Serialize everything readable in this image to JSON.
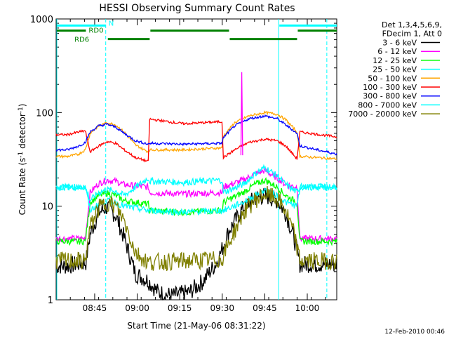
{
  "chart_data": {
    "type": "line",
    "title": "HESSI Observing Summary Count Rates",
    "xlabel": "Start Time (21-May-06 08:31:22)",
    "ylabel_main": "Count Rate (s",
    "ylabel_sup1": "-1",
    "ylabel_mid": " detector",
    "ylabel_sup2": "-1",
    "ylabel_end": ")",
    "yscale": "log",
    "ylim": [
      1,
      1000
    ],
    "xlim_minutes": [
      0,
      99
    ],
    "x_ticks": [
      {
        "label": "08:45",
        "t": 13.6
      },
      {
        "label": "09:00",
        "t": 28.6
      },
      {
        "label": "09:15",
        "t": 43.6
      },
      {
        "label": "09:30",
        "t": 58.6
      },
      {
        "label": "09:45",
        "t": 73.6
      },
      {
        "label": "10:00",
        "t": 88.6
      }
    ],
    "y_ticks": [
      {
        "label": "1",
        "v": 1
      },
      {
        "label": "10",
        "v": 10
      },
      {
        "label": "100",
        "v": 100
      },
      {
        "label": "1000",
        "v": 1000
      }
    ],
    "legend_header": [
      "Det 1,3,4,5,6,9,",
      "FDecim 1, Att 0"
    ],
    "series": [
      {
        "name": "3 - 6 keV",
        "color": "#000000",
        "values": [
          {
            "t": 0,
            "v": 2.3
          },
          {
            "t": 4,
            "v": 2.3
          },
          {
            "t": 10.5,
            "v": 2.5
          },
          {
            "t": 12,
            "v": 5
          },
          {
            "t": 15,
            "v": 8.5
          },
          {
            "t": 18,
            "v": 9.8
          },
          {
            "t": 21,
            "v": 8
          },
          {
            "t": 24,
            "v": 4.6
          },
          {
            "t": 28,
            "v": 1.9
          },
          {
            "t": 32.5,
            "v": 1.6
          },
          {
            "t": 36,
            "v": 1.2
          },
          {
            "t": 41,
            "v": 1.1
          },
          {
            "t": 47,
            "v": 1.2
          },
          {
            "t": 52,
            "v": 1.6
          },
          {
            "t": 57,
            "v": 2.6
          },
          {
            "t": 61,
            "v": 5.5
          },
          {
            "t": 66,
            "v": 9.5
          },
          {
            "t": 70,
            "v": 12
          },
          {
            "t": 73.6,
            "v": 13
          },
          {
            "t": 78,
            "v": 11.5
          },
          {
            "t": 81,
            "v": 8.5
          },
          {
            "t": 84,
            "v": 4.5
          },
          {
            "t": 86,
            "v": 2.4
          },
          {
            "t": 99,
            "v": 2.4
          }
        ]
      },
      {
        "name": "6 - 12 keV",
        "color": "#ff00ff",
        "values": [
          {
            "t": 0,
            "v": 4.5
          },
          {
            "t": 10.3,
            "v": 4.5
          },
          {
            "t": 12,
            "v": 14
          },
          {
            "t": 15,
            "v": 17.5
          },
          {
            "t": 18,
            "v": 19
          },
          {
            "t": 21,
            "v": 18.5
          },
          {
            "t": 24,
            "v": 17
          },
          {
            "t": 32.5,
            "v": 16
          },
          {
            "t": 33,
            "v": 14
          },
          {
            "t": 45,
            "v": 13.5
          },
          {
            "t": 58.5,
            "v": 14
          },
          {
            "t": 59,
            "v": 16
          },
          {
            "t": 66,
            "v": 19
          },
          {
            "t": 70,
            "v": 22
          },
          {
            "t": 73.6,
            "v": 24
          },
          {
            "t": 78,
            "v": 20
          },
          {
            "t": 81,
            "v": 17
          },
          {
            "t": 85,
            "v": 16
          },
          {
            "t": 86,
            "v": 4.5
          },
          {
            "t": 99,
            "v": 4.5
          }
        ]
      },
      {
        "name": "12 - 25 keV",
        "color": "#00ff00",
        "values": [
          {
            "t": 0,
            "v": 4.2
          },
          {
            "t": 10.3,
            "v": 4.2
          },
          {
            "t": 12,
            "v": 11
          },
          {
            "t": 15,
            "v": 13
          },
          {
            "t": 18,
            "v": 13.8
          },
          {
            "t": 21,
            "v": 13
          },
          {
            "t": 24,
            "v": 11.5
          },
          {
            "t": 32.5,
            "v": 10.5
          },
          {
            "t": 33,
            "v": 9
          },
          {
            "t": 45,
            "v": 8.6
          },
          {
            "t": 58.5,
            "v": 9
          },
          {
            "t": 59,
            "v": 11
          },
          {
            "t": 66,
            "v": 14
          },
          {
            "t": 70,
            "v": 17
          },
          {
            "t": 73.6,
            "v": 19
          },
          {
            "t": 78,
            "v": 16
          },
          {
            "t": 81,
            "v": 13
          },
          {
            "t": 85,
            "v": 11
          },
          {
            "t": 86,
            "v": 4.2
          },
          {
            "t": 99,
            "v": 4.2
          }
        ]
      },
      {
        "name": "25 - 50 keV",
        "color": "#00ffff",
        "values": [
          {
            "t": 0,
            "v": 16
          },
          {
            "t": 10.3,
            "v": 16
          },
          {
            "t": 12,
            "v": 11.5
          },
          {
            "t": 15,
            "v": 14
          },
          {
            "t": 18,
            "v": 15
          },
          {
            "t": 21,
            "v": 14.5
          },
          {
            "t": 24,
            "v": 13
          },
          {
            "t": 32.5,
            "v": 20
          },
          {
            "t": 33,
            "v": 18.5
          },
          {
            "t": 45,
            "v": 18
          },
          {
            "t": 58.5,
            "v": 19
          },
          {
            "t": 59,
            "v": 14
          },
          {
            "t": 66,
            "v": 17
          },
          {
            "t": 70,
            "v": 22
          },
          {
            "t": 73.6,
            "v": 26
          },
          {
            "t": 78,
            "v": 21
          },
          {
            "t": 81,
            "v": 17
          },
          {
            "t": 85,
            "v": 14
          },
          {
            "t": 86,
            "v": 16
          },
          {
            "t": 99,
            "v": 16
          }
        ]
      },
      {
        "name": "50 - 100 keV",
        "color": "#ffa500",
        "values": [
          {
            "t": 0,
            "v": 34
          },
          {
            "t": 4,
            "v": 34
          },
          {
            "t": 8,
            "v": 36
          },
          {
            "t": 10.3,
            "v": 40
          },
          {
            "t": 12,
            "v": 60
          },
          {
            "t": 15,
            "v": 72
          },
          {
            "t": 18,
            "v": 78
          },
          {
            "t": 21,
            "v": 74
          },
          {
            "t": 24,
            "v": 62
          },
          {
            "t": 28,
            "v": 45
          },
          {
            "t": 32.5,
            "v": 38
          },
          {
            "t": 33,
            "v": 40
          },
          {
            "t": 45,
            "v": 40
          },
          {
            "t": 58.5,
            "v": 42
          },
          {
            "t": 59,
            "v": 56
          },
          {
            "t": 63,
            "v": 78
          },
          {
            "t": 68,
            "v": 92
          },
          {
            "t": 73.6,
            "v": 100
          },
          {
            "t": 78,
            "v": 96
          },
          {
            "t": 81,
            "v": 84
          },
          {
            "t": 85,
            "v": 62
          },
          {
            "t": 86,
            "v": 34
          },
          {
            "t": 99,
            "v": 32
          }
        ]
      },
      {
        "name": "100 - 300 keV",
        "color": "#ff0000",
        "values": [
          {
            "t": 0,
            "v": 58
          },
          {
            "t": 4,
            "v": 58
          },
          {
            "t": 8,
            "v": 62
          },
          {
            "t": 10.3,
            "v": 64
          },
          {
            "t": 12,
            "v": 38
          },
          {
            "t": 15,
            "v": 44
          },
          {
            "t": 18,
            "v": 49
          },
          {
            "t": 21,
            "v": 47
          },
          {
            "t": 24,
            "v": 40
          },
          {
            "t": 28,
            "v": 33
          },
          {
            "t": 32.5,
            "v": 30
          },
          {
            "t": 33,
            "v": 85
          },
          {
            "t": 45,
            "v": 76
          },
          {
            "t": 58.5,
            "v": 80
          },
          {
            "t": 59,
            "v": 33
          },
          {
            "t": 63,
            "v": 40
          },
          {
            "t": 68,
            "v": 48
          },
          {
            "t": 73.6,
            "v": 52
          },
          {
            "t": 78,
            "v": 50
          },
          {
            "t": 81,
            "v": 44
          },
          {
            "t": 85,
            "v": 32
          },
          {
            "t": 86,
            "v": 62
          },
          {
            "t": 99,
            "v": 55
          }
        ]
      },
      {
        "name": "300 - 800 keV",
        "color": "#0000ff",
        "values": [
          {
            "t": 0,
            "v": 40
          },
          {
            "t": 4,
            "v": 40
          },
          {
            "t": 8,
            "v": 44
          },
          {
            "t": 10.3,
            "v": 48
          },
          {
            "t": 12,
            "v": 62
          },
          {
            "t": 15,
            "v": 72
          },
          {
            "t": 18,
            "v": 75
          },
          {
            "t": 21,
            "v": 70
          },
          {
            "t": 24,
            "v": 60
          },
          {
            "t": 28,
            "v": 50
          },
          {
            "t": 32.5,
            "v": 46
          },
          {
            "t": 33,
            "v": 47
          },
          {
            "t": 45,
            "v": 46
          },
          {
            "t": 58.5,
            "v": 47
          },
          {
            "t": 59,
            "v": 54
          },
          {
            "t": 63,
            "v": 72
          },
          {
            "t": 68,
            "v": 86
          },
          {
            "t": 73.6,
            "v": 92
          },
          {
            "t": 78,
            "v": 86
          },
          {
            "t": 81,
            "v": 74
          },
          {
            "t": 85,
            "v": 60
          },
          {
            "t": 86,
            "v": 44
          },
          {
            "t": 99,
            "v": 36
          }
        ]
      },
      {
        "name": "800 - 7000 keV",
        "color": "#00ffff",
        "values": [
          {
            "t": 0,
            "v": 16
          },
          {
            "t": 10.3,
            "v": 16
          },
          {
            "t": 12,
            "v": 9
          },
          {
            "t": 15,
            "v": 10.5
          },
          {
            "t": 18,
            "v": 11.5
          },
          {
            "t": 21,
            "v": 11
          },
          {
            "t": 24,
            "v": 10
          },
          {
            "t": 32.5,
            "v": 9
          },
          {
            "t": 33,
            "v": 9
          },
          {
            "t": 45,
            "v": 8.6
          },
          {
            "t": 58.5,
            "v": 9
          },
          {
            "t": 59,
            "v": 9
          },
          {
            "t": 66,
            "v": 11
          },
          {
            "t": 70,
            "v": 13
          },
          {
            "t": 73.6,
            "v": 15
          },
          {
            "t": 78,
            "v": 13
          },
          {
            "t": 81,
            "v": 11
          },
          {
            "t": 85,
            "v": 10
          },
          {
            "t": 86,
            "v": 16
          },
          {
            "t": 99,
            "v": 16
          }
        ]
      },
      {
        "name": "7000 - 20000 keV",
        "color": "#808000",
        "values": [
          {
            "t": 0,
            "v": 2.6
          },
          {
            "t": 10.3,
            "v": 2.6
          },
          {
            "t": 12,
            "v": 6
          },
          {
            "t": 15,
            "v": 9.5
          },
          {
            "t": 18,
            "v": 11
          },
          {
            "t": 21,
            "v": 10
          },
          {
            "t": 24,
            "v": 7
          },
          {
            "t": 28,
            "v": 3.2
          },
          {
            "t": 32.5,
            "v": 2.5
          },
          {
            "t": 45,
            "v": 2.6
          },
          {
            "t": 58.5,
            "v": 2.7
          },
          {
            "t": 59,
            "v": 3
          },
          {
            "t": 66,
            "v": 8.5
          },
          {
            "t": 70,
            "v": 11.5
          },
          {
            "t": 73.6,
            "v": 13.5
          },
          {
            "t": 78,
            "v": 12
          },
          {
            "t": 81,
            "v": 9
          },
          {
            "t": 84,
            "v": 5
          },
          {
            "t": 86,
            "v": 2.6
          },
          {
            "t": 99,
            "v": 2.6
          }
        ]
      },
      {
        "name": "",
        "color": "#ff00ff",
        "values": [
          {
            "t": 65.2,
            "v": 35
          },
          {
            "t": 65.5,
            "v": 270
          },
          {
            "t": 65.8,
            "v": 35
          }
        ]
      }
    ],
    "flag_bars": [
      {
        "label": "N",
        "color": "#00ffff",
        "v": 850,
        "segments": [
          [
            0,
            17.5
          ],
          [
            78.5,
            99
          ]
        ]
      },
      {
        "label": "RD0",
        "color": "#008000",
        "v": 750,
        "segments": [
          [
            0,
            10.5
          ],
          [
            33,
            61
          ],
          [
            85,
            99
          ]
        ]
      },
      {
        "label": "RD6",
        "color": "#008000",
        "v": 610,
        "segments": [
          [
            18,
            33
          ],
          [
            61,
            85
          ]
        ]
      }
    ],
    "vertical_lines": [
      {
        "t": 0,
        "color": "#00ffff",
        "style": "solid"
      },
      {
        "t": 17.5,
        "color": "#00ffff",
        "style": "dashed"
      },
      {
        "t": 78.5,
        "color": "#00ffff",
        "style": "solid"
      },
      {
        "t": 95.5,
        "color": "#00ffff",
        "style": "dashed"
      }
    ]
  },
  "footer_date": "12-Feb-2010 00:46"
}
